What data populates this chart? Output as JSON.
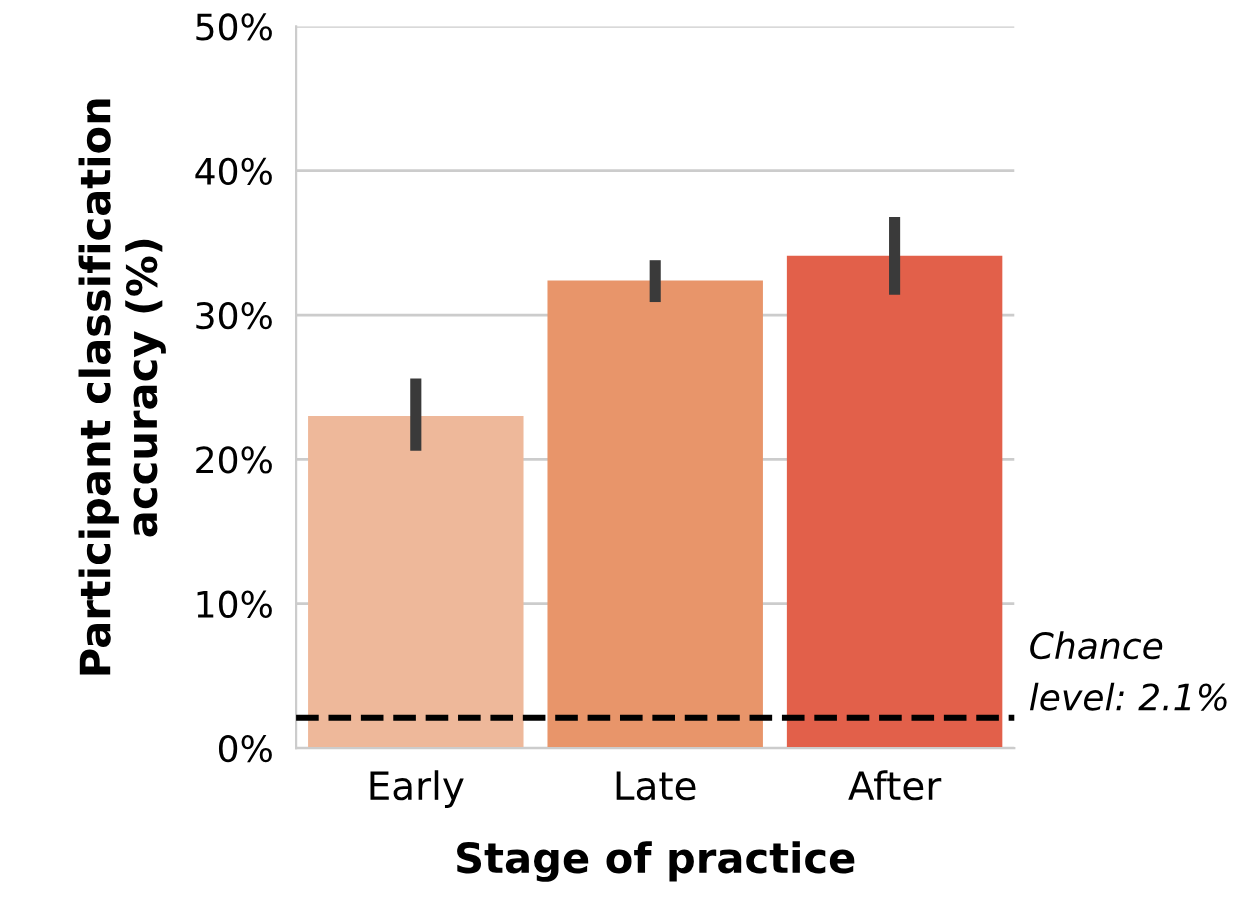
{
  "chart_data": {
    "type": "bar",
    "xlabel": "Stage of practice",
    "ylabel": "Participant classification\naccuracy (%)",
    "categories": [
      "Early",
      "Late",
      "After"
    ],
    "values": [
      23.0,
      32.4,
      34.1
    ],
    "colors": [
      "#eeb89a",
      "#e8956a",
      "#e2604a"
    ],
    "errors": [
      [
        20.6,
        25.6
      ],
      [
        30.9,
        33.8
      ],
      [
        31.4,
        36.8
      ]
    ],
    "ylim": [
      0,
      50
    ],
    "yticks": [
      {
        "value": 0,
        "label": "0%"
      },
      {
        "value": 10,
        "label": "10%"
      },
      {
        "value": 20,
        "label": "20%"
      },
      {
        "value": 30,
        "label": "30%"
      },
      {
        "value": 40,
        "label": "40%"
      },
      {
        "value": 50,
        "label": "50%"
      }
    ],
    "grid": "y",
    "ref_lines": [
      {
        "axis": "y",
        "value": 2.1,
        "label": "Chance\nlevel: 2.1%",
        "color": "#000000",
        "line_style": "dashed"
      }
    ]
  }
}
